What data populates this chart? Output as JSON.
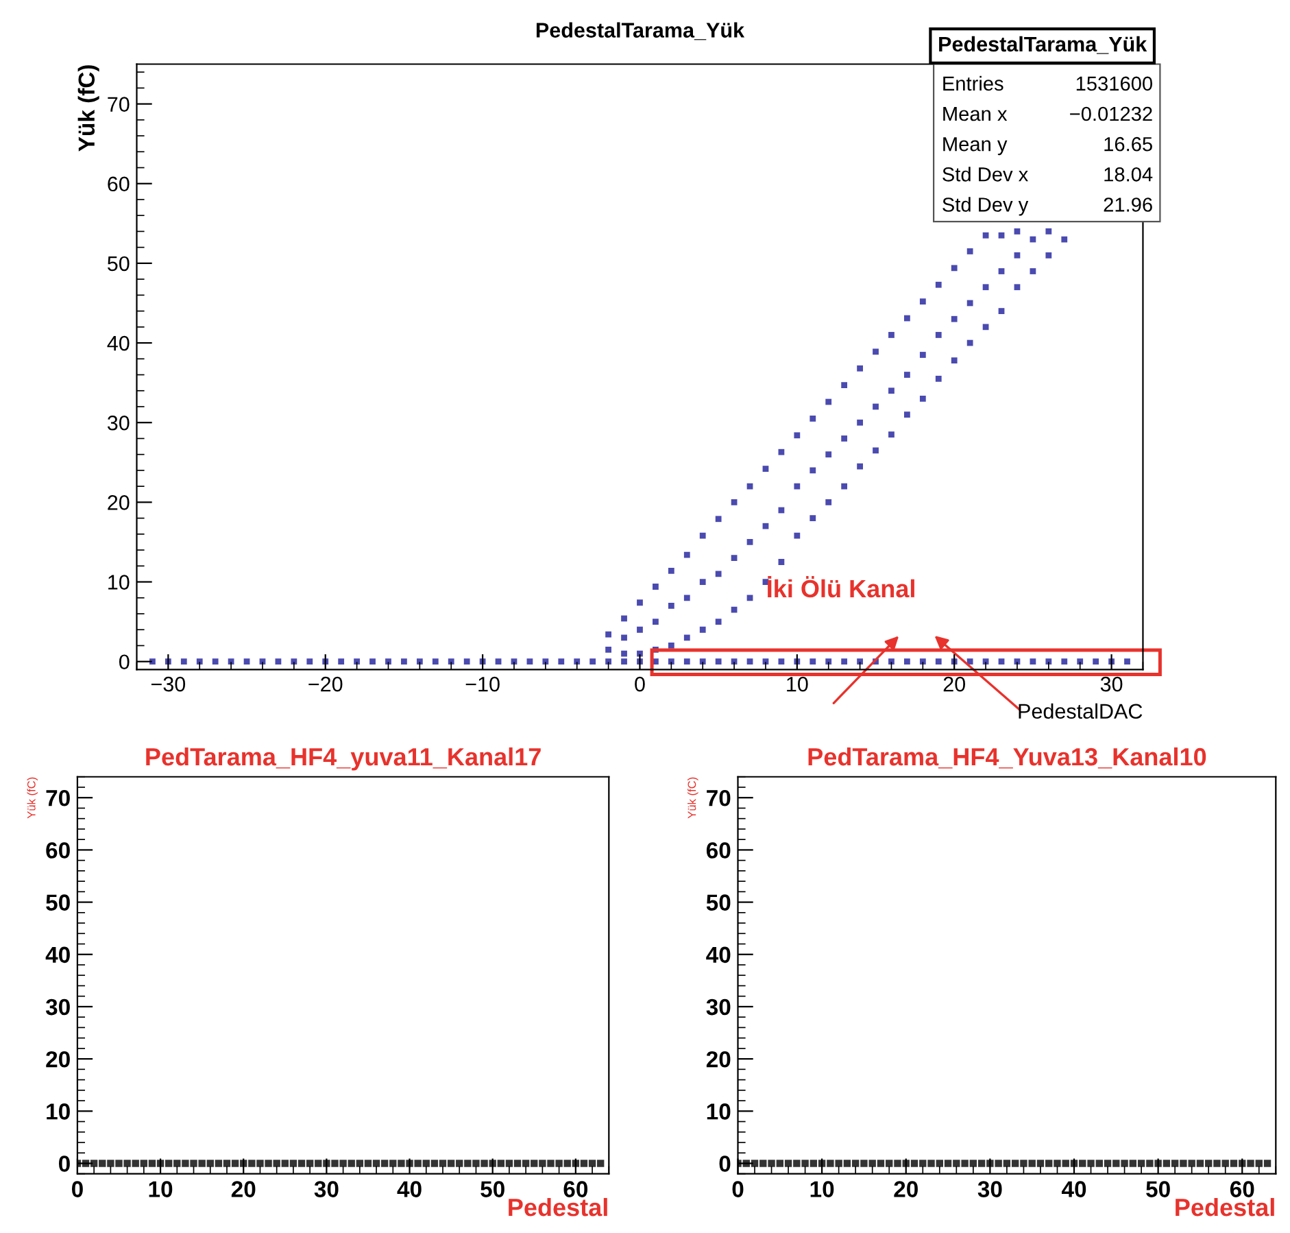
{
  "chart_data": [
    {
      "type": "scatter",
      "title": "PedestalTarama_Yük",
      "xlabel": "PedestalDAC",
      "ylabel": "Yük (fC)",
      "marker": "square",
      "grid": false,
      "xlim": [
        -32,
        32
      ],
      "ylim": [
        -1,
        75
      ],
      "xticks": [
        -30,
        -20,
        -10,
        0,
        10,
        20,
        30
      ],
      "yticks": [
        0,
        10,
        20,
        30,
        40,
        50,
        60,
        70
      ],
      "annotations": [
        "PedestalTarama_Yük",
        "Entries",
        "1531600",
        "Mean x",
        "−0.01232",
        "Mean y",
        "16.65",
        "Std Dev x",
        "18.04",
        "Std Dev y",
        "21.96",
        "İki Ölü Kanal"
      ],
      "series": [
        {
          "color": "#4a4ab0",
          "x": [
            -31,
            -30,
            -29,
            -28,
            -27,
            -26,
            -25,
            -24,
            -23,
            -22,
            -21,
            -20,
            -19,
            -18,
            -17,
            -16,
            -15,
            -14,
            -13,
            -12,
            -11,
            -10,
            -9,
            -8,
            -7,
            -6,
            -5,
            -4,
            -3,
            -2,
            -1,
            0,
            1,
            2,
            3,
            4,
            5,
            6,
            7,
            8,
            9,
            10,
            11,
            12,
            13,
            14,
            15,
            16,
            17,
            18,
            19,
            20,
            21,
            22,
            23,
            24,
            25,
            26,
            27,
            28,
            29,
            30,
            31
          ],
          "values": [
            0,
            0,
            0,
            0,
            0,
            0,
            0,
            0,
            0,
            0,
            0,
            0,
            0,
            0,
            0,
            0,
            0,
            0,
            0,
            0,
            0,
            0,
            0,
            0,
            0,
            0,
            0,
            0,
            0,
            0,
            0,
            0,
            0,
            0,
            0,
            0,
            0,
            0,
            0,
            0,
            0,
            0,
            0,
            0,
            0,
            0,
            0,
            0,
            0,
            0,
            0,
            0,
            0,
            0,
            0,
            0,
            0,
            0,
            0,
            0,
            0,
            0,
            0
          ]
        },
        {
          "color": "#4a4ab0",
          "x": [
            -2,
            -2,
            -1,
            -1,
            -1,
            0,
            0,
            0,
            1,
            1,
            1,
            2,
            2,
            2,
            3,
            3,
            3,
            4,
            4,
            4,
            5,
            5,
            5,
            6,
            6,
            6,
            7,
            7,
            7,
            8,
            8,
            8,
            9,
            9,
            9,
            10,
            10,
            10,
            11,
            11,
            11,
            12,
            12,
            12,
            13,
            13,
            13,
            14,
            14,
            14,
            15,
            15,
            15,
            16,
            16,
            16,
            17,
            17,
            17,
            18,
            18,
            18,
            19,
            19,
            19,
            20,
            20,
            20,
            21,
            21,
            21,
            22,
            22,
            22,
            23,
            23,
            23,
            24,
            24,
            24,
            25,
            25,
            26,
            26,
            27
          ],
          "values": [
            1.5,
            3.4,
            1,
            3,
            5.4,
            1,
            4,
            7.4,
            1.5,
            5,
            9.4,
            2,
            7,
            11.4,
            3,
            8,
            13.4,
            4,
            10,
            15.8,
            5,
            11,
            17.9,
            6.5,
            13,
            20,
            8,
            15,
            22,
            10,
            17,
            24.2,
            12.5,
            19,
            26.3,
            15.8,
            22,
            28.4,
            18,
            24,
            30.5,
            20,
            26,
            32.6,
            22,
            28,
            34.7,
            24.5,
            30,
            36.8,
            26.5,
            32,
            38.9,
            28.5,
            34,
            41,
            31,
            36,
            43.1,
            33,
            38.5,
            45.2,
            35.5,
            41,
            47.3,
            37.8,
            43,
            49.4,
            40,
            45,
            51.5,
            42,
            47,
            53.5,
            44,
            49,
            53.5,
            47,
            51,
            54,
            49,
            53,
            51,
            54,
            53
          ]
        }
      ]
    },
    {
      "type": "scatter",
      "title": "PedTarama_HF4_yuva11_Kanal17",
      "xlabel": "Pedestal",
      "ylabel": "Yük (fC)",
      "marker": "square",
      "grid": false,
      "xlim": [
        0,
        64
      ],
      "ylim": [
        -2,
        74
      ],
      "xticks": [
        0,
        10,
        20,
        30,
        40,
        50,
        60
      ],
      "yticks": [
        0,
        10,
        20,
        30,
        40,
        50,
        60,
        70
      ],
      "series": [
        {
          "color": "#333333",
          "x": [
            0,
            1,
            2,
            3,
            4,
            5,
            6,
            7,
            8,
            9,
            10,
            11,
            12,
            13,
            14,
            15,
            16,
            17,
            18,
            19,
            20,
            21,
            22,
            23,
            24,
            25,
            26,
            27,
            28,
            29,
            30,
            31,
            32,
            33,
            34,
            35,
            36,
            37,
            38,
            39,
            40,
            41,
            42,
            43,
            44,
            45,
            46,
            47,
            48,
            49,
            50,
            51,
            52,
            53,
            54,
            55,
            56,
            57,
            58,
            59,
            60,
            61,
            62,
            63
          ],
          "values": [
            0,
            0,
            0,
            0,
            0,
            0,
            0,
            0,
            0,
            0,
            0,
            0,
            0,
            0,
            0,
            0,
            0,
            0,
            0,
            0,
            0,
            0,
            0,
            0,
            0,
            0,
            0,
            0,
            0,
            0,
            0,
            0,
            0,
            0,
            0,
            0,
            0,
            0,
            0,
            0,
            0,
            0,
            0,
            0,
            0,
            0,
            0,
            0,
            0,
            0,
            0,
            0,
            0,
            0,
            0,
            0,
            0,
            0,
            0,
            0,
            0,
            0,
            0,
            0
          ]
        }
      ]
    },
    {
      "type": "scatter",
      "title": "PedTarama_HF4_Yuva13_Kanal10",
      "xlabel": "Pedestal",
      "ylabel": "Yük (fC)",
      "marker": "square",
      "grid": false,
      "xlim": [
        0,
        64
      ],
      "ylim": [
        -2,
        74
      ],
      "xticks": [
        0,
        10,
        20,
        30,
        40,
        50,
        60
      ],
      "yticks": [
        0,
        10,
        20,
        30,
        40,
        50,
        60,
        70
      ],
      "series": [
        {
          "color": "#333333",
          "x": [
            0,
            1,
            2,
            3,
            4,
            5,
            6,
            7,
            8,
            9,
            10,
            11,
            12,
            13,
            14,
            15,
            16,
            17,
            18,
            19,
            20,
            21,
            22,
            23,
            24,
            25,
            26,
            27,
            28,
            29,
            30,
            31,
            32,
            33,
            34,
            35,
            36,
            37,
            38,
            39,
            40,
            41,
            42,
            43,
            44,
            45,
            46,
            47,
            48,
            49,
            50,
            51,
            52,
            53,
            54,
            55,
            56,
            57,
            58,
            59,
            60,
            61,
            62,
            63
          ],
          "values": [
            0,
            0,
            0,
            0,
            0,
            0,
            0,
            0,
            0,
            0,
            0,
            0,
            0,
            0,
            0,
            0,
            0,
            0,
            0,
            0,
            0,
            0,
            0,
            0,
            0,
            0,
            0,
            0,
            0,
            0,
            0,
            0,
            0,
            0,
            0,
            0,
            0,
            0,
            0,
            0,
            0,
            0,
            0,
            0,
            0,
            0,
            0,
            0,
            0,
            0,
            0,
            0,
            0,
            0,
            0,
            0,
            0,
            0,
            0,
            0,
            0,
            0,
            0,
            0
          ]
        }
      ]
    }
  ]
}
